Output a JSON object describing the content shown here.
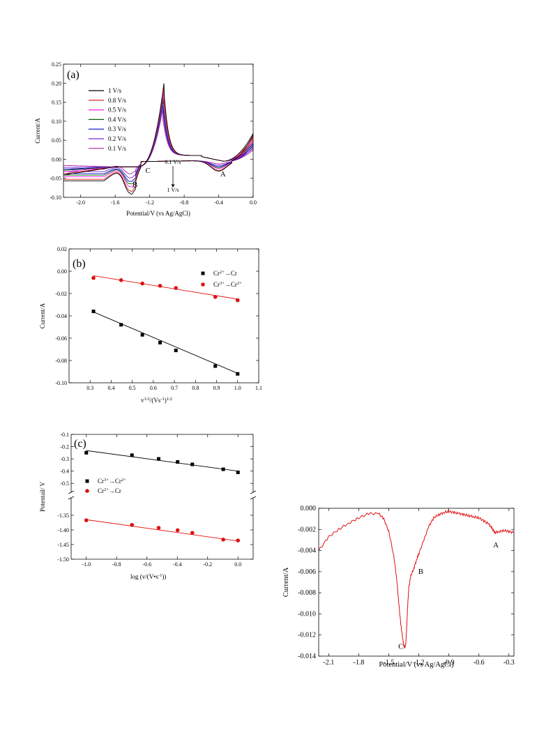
{
  "chart_data": [
    {
      "type": "line",
      "panel_label": "(a)",
      "xlabel": "Potential/V (vs Ag/AgCl)",
      "ylabel": "Current/A",
      "xlim": [
        -2.2,
        0.0
      ],
      "ylim": [
        -0.1,
        0.25
      ],
      "xticks": [
        -2.0,
        -1.6,
        -1.2,
        -0.8,
        -0.4,
        0.0
      ],
      "xtick_labels": [
        "-2.0",
        "-1.6",
        "-1.2",
        "-0.8",
        "-0.4",
        "0.0"
      ],
      "yticks": [
        -0.1,
        -0.05,
        0.0,
        0.05,
        0.1,
        0.15,
        0.2,
        0.25
      ],
      "ytick_labels": [
        "-0.10",
        "-0.05",
        "0.00",
        "0.05",
        "0.10",
        "0.15",
        "0.20",
        "0.25"
      ],
      "legend_position": "top-left",
      "annotations": [
        {
          "text": "A",
          "x": -0.35,
          "y": -0.045
        },
        {
          "text": "B",
          "x": -1.37,
          "y": -0.073
        },
        {
          "text": "C",
          "x": -1.22,
          "y": -0.036
        },
        {
          "text": "0.1 V/s",
          "x": -0.93,
          "y": -0.012
        },
        {
          "text": "1 V/s",
          "x": -0.93,
          "y": -0.085
        }
      ],
      "series": [
        {
          "name": "1 V/s",
          "color": "#000000",
          "peak_ox": 0.225,
          "peak_red_B": -0.092,
          "peak_red_A": -0.027,
          "end_current": 0.068
        },
        {
          "name": "0.8 V/s",
          "color": "#dd1111",
          "peak_ox": 0.213,
          "peak_red_B": -0.085,
          "peak_red_A": -0.025,
          "end_current": 0.06
        },
        {
          "name": "0.5 V/s",
          "color": "#ee22ee",
          "peak_ox": 0.2,
          "peak_red_B": -0.073,
          "peak_red_A": -0.02,
          "end_current": 0.05
        },
        {
          "name": "0.4 V/s",
          "color": "#006600",
          "peak_ox": 0.188,
          "peak_red_B": -0.065,
          "peak_red_A": -0.018,
          "end_current": 0.046
        },
        {
          "name": "0.3 V/s",
          "color": "#0000cc",
          "peak_ox": 0.178,
          "peak_red_B": -0.058,
          "peak_red_A": -0.015,
          "end_current": 0.04
        },
        {
          "name": "0.2 V/s",
          "color": "#7722dd",
          "peak_ox": 0.165,
          "peak_red_B": -0.048,
          "peak_red_A": -0.012,
          "end_current": 0.034
        },
        {
          "name": "0.1 V/s",
          "color": "#aa2299",
          "peak_ox": 0.15,
          "peak_red_B": -0.036,
          "peak_red_A": -0.008,
          "end_current": 0.028
        }
      ]
    },
    {
      "type": "scatter",
      "panel_label": "(b)",
      "xlabel": "v",
      "xlabel_sup1": "1/2",
      "xlabel_mid": "/(Vs",
      "xlabel_sup2": "-1",
      "xlabel_end": ")",
      "xlabel_sup3": "1/2",
      "ylabel": "Current/A",
      "xlim": [
        0.2,
        1.1
      ],
      "ylim": [
        -0.1,
        0.02
      ],
      "xticks": [
        0.3,
        0.4,
        0.5,
        0.6,
        0.7,
        0.8,
        0.9,
        1.0,
        1.1
      ],
      "xtick_labels": [
        "0.3",
        "0.4",
        "0.5",
        "0.6",
        "0.7",
        "0.8",
        "0.9",
        "1.0",
        "1.1"
      ],
      "yticks": [
        -0.1,
        -0.08,
        -0.06,
        -0.04,
        -0.02,
        0.0,
        0.02
      ],
      "ytick_labels": [
        "-0.10",
        "-0.08",
        "-0.06",
        "-0.04",
        "-0.02",
        "0.00",
        "0.02"
      ],
      "legend_position": "top-right",
      "series": [
        {
          "name_pre": "Cr",
          "name_sup": "2+",
          "name_post": "→Cr",
          "name_sup2": "",
          "marker": "square",
          "color": "#000000",
          "x": [
            0.316,
            0.447,
            0.548,
            0.632,
            0.707,
            0.894,
            1.0
          ],
          "y": [
            -0.036,
            -0.048,
            -0.057,
            -0.064,
            -0.071,
            -0.085,
            -0.092
          ],
          "fit": [
            [
              0.316,
              -0.0365
            ],
            [
              1.0,
              -0.0915
            ]
          ]
        },
        {
          "name_pre": "Cr",
          "name_sup": "3+",
          "name_post": "→Cr",
          "name_sup2": "2+",
          "marker": "circle",
          "color": "#e01010",
          "x": [
            0.316,
            0.447,
            0.548,
            0.632,
            0.707,
            0.894,
            1.0
          ],
          "y": [
            -0.006,
            -0.008,
            -0.011,
            -0.013,
            -0.015,
            -0.023,
            -0.026
          ],
          "fit": [
            [
              0.316,
              -0.004
            ],
            [
              1.0,
              -0.025
            ]
          ]
        }
      ]
    },
    {
      "type": "scatter",
      "panel_label": "(c)",
      "xlabel": "log (v/(V•s",
      "xlabel_sup": "-1",
      "xlabel_end": "))",
      "ylabel": "Potentail/ V",
      "xlim": [
        -1.1,
        0.1
      ],
      "xticks": [
        -1.0,
        -0.8,
        -0.6,
        -0.4,
        -0.2,
        0.0
      ],
      "xtick_labels": [
        "-1.0",
        "-0.8",
        "-0.6",
        "-0.4",
        "-0.2",
        "0.0"
      ],
      "ylim_upper": [
        -0.55,
        -0.1
      ],
      "ylim_lower": [
        -1.5,
        -1.3
      ],
      "yticks_upper": [
        -0.1,
        -0.2,
        -0.3,
        -0.4,
        -0.5
      ],
      "ytick_labels_upper": [
        "-0.1",
        "-0.2",
        "-0.3",
        "-0.4",
        "-0.5"
      ],
      "yticks_lower": [
        -1.35,
        -1.4,
        -1.45,
        -1.5
      ],
      "ytick_labels_lower": [
        "-1.35",
        "-1.40",
        "-1.45",
        "-1.50"
      ],
      "legend_position": "middle-left",
      "series": [
        {
          "name_pre": "Cr",
          "name_sup": "3+",
          "name_post": "→Cr",
          "name_sup2": "2+",
          "marker": "square",
          "color": "#000000",
          "x": [
            -1.0,
            -0.699,
            -0.523,
            -0.398,
            -0.301,
            -0.097,
            0.0
          ],
          "y": [
            -0.25,
            -0.27,
            -0.3,
            -0.325,
            -0.345,
            -0.385,
            -0.41
          ],
          "fit": [
            [
              -1.0,
              -0.232
            ],
            [
              0.0,
              -0.4
            ]
          ]
        },
        {
          "name_pre": "Cr",
          "name_sup": "2+",
          "name_post": "→Cr",
          "name_sup2": "",
          "marker": "circle",
          "color": "#e01010",
          "x": [
            -1.0,
            -0.699,
            -0.523,
            -0.398,
            -0.301,
            -0.097,
            0.0
          ],
          "y": [
            -1.367,
            -1.383,
            -1.393,
            -1.401,
            -1.41,
            -1.433,
            -1.436
          ],
          "fit": [
            [
              -1.0,
              -1.365
            ],
            [
              0.0,
              -1.438
            ]
          ]
        }
      ]
    },
    {
      "type": "line",
      "xlabel": "Potential/V (vs Ag/AgCl)",
      "ylabel": "Current/A",
      "xlim": [
        -2.2,
        -0.25
      ],
      "ylim": [
        -0.014,
        0.0
      ],
      "xticks": [
        -2.1,
        -1.8,
        -1.5,
        -1.2,
        -0.9,
        -0.6,
        -0.3
      ],
      "xtick_labels": [
        "-2.1",
        "-1.8",
        "-1.5",
        "-1.2",
        "-0.9",
        "-0.6",
        "-0.3"
      ],
      "yticks": [
        0.0,
        -0.002,
        -0.004,
        -0.006,
        -0.008,
        -0.01,
        -0.012,
        -0.014
      ],
      "ytick_labels": [
        "0.000",
        "-0.002",
        "-0.004",
        "-0.006",
        "-0.008",
        "-0.010",
        "-0.012",
        "-0.014"
      ],
      "annotations": [
        {
          "text": "A",
          "x": -0.43,
          "y": -0.0037
        },
        {
          "text": "B",
          "x": -1.18,
          "y": -0.0062
        },
        {
          "text": "C",
          "x": -1.38,
          "y": -0.0133
        }
      ],
      "series": [
        {
          "color": "#e01010",
          "x": [
            -2.2,
            -2.1,
            -2.0,
            -1.9,
            -1.8,
            -1.7,
            -1.6,
            -1.55,
            -1.5,
            -1.45,
            -1.42,
            -1.4,
            -1.38,
            -1.36,
            -1.35,
            -1.34,
            -1.33,
            -1.32,
            -1.31,
            -1.3,
            -1.28,
            -1.25,
            -1.22,
            -1.2,
            -1.15,
            -1.1,
            -1.05,
            -1.0,
            -0.95,
            -0.9,
            -0.85,
            -0.8,
            -0.75,
            -0.7,
            -0.65,
            -0.6,
            -0.55,
            -0.5,
            -0.47,
            -0.44,
            -0.4,
            -0.35,
            -0.3,
            -0.25
          ],
          "y": [
            -0.004,
            -0.0027,
            -0.002,
            -0.0014,
            -0.0009,
            -0.0005,
            -0.0005,
            -0.001,
            -0.0022,
            -0.0045,
            -0.0068,
            -0.009,
            -0.011,
            -0.0124,
            -0.013,
            -0.0132,
            -0.0128,
            -0.011,
            -0.009,
            -0.0075,
            -0.0064,
            -0.0057,
            -0.0048,
            -0.0043,
            -0.003,
            -0.0017,
            -0.0009,
            -0.0006,
            -0.0004,
            -0.0003,
            -0.0004,
            -0.0005,
            -0.0006,
            -0.0007,
            -0.0008,
            -0.0009,
            -0.0012,
            -0.0015,
            -0.0019,
            -0.0023,
            -0.0022,
            -0.0021,
            -0.0022,
            -0.0023
          ]
        }
      ]
    }
  ]
}
